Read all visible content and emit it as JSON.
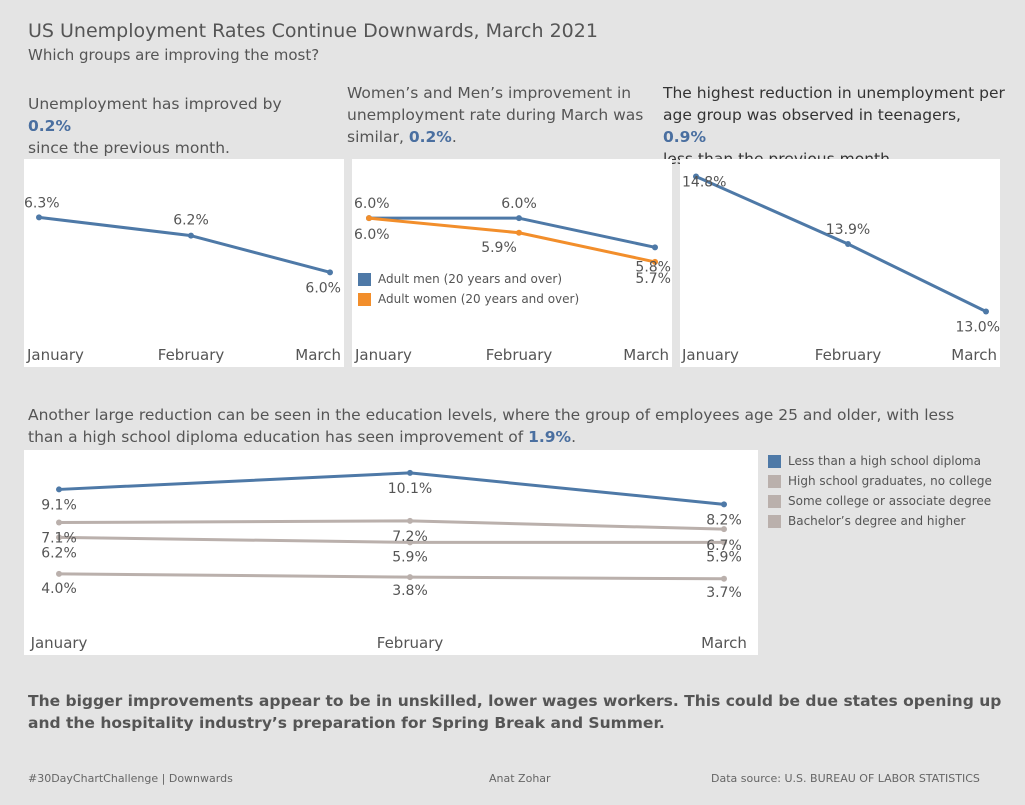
{
  "title": "US Unemployment Rates Continue Downwards, March 2021",
  "subtitle": "Which groups are improving the most?",
  "notes": {
    "overall_pre": "Unemployment has improved by ",
    "overall_val": "0.2%",
    "overall_post": "since the previous month.",
    "gender_pre": "Women’s and Men’s improvement in unemployment rate during March was similar, ",
    "gender_val": "0.2%",
    "gender_post": ".",
    "teen_pre": "The highest reduction in unemployment per age group was observed in teenagers, ",
    "teen_val": "0.9%",
    "teen_post": "less than the previous month.",
    "edu_pre": "Another large reduction can be seen  in the education levels, where the group of employees age 25 and older, with less than a high school diploma education has seen improvement of ",
    "edu_val": "1.9%",
    "edu_post": "."
  },
  "colors": {
    "blue": "#4e79a7",
    "orange": "#f28e2b",
    "gray": "#bab0ac",
    "accent_text": "#4a6fa0"
  },
  "chart_data": [
    {
      "type": "line",
      "id": "overall",
      "categories": [
        "January",
        "February",
        "March"
      ],
      "series": [
        {
          "values": [
            6.3,
            6.2,
            6.0
          ],
          "labels": [
            "6.3%",
            "6.2%",
            "6.0%"
          ],
          "color": "#4e79a7"
        }
      ]
    },
    {
      "type": "line",
      "id": "gender",
      "categories": [
        "January",
        "February",
        "March"
      ],
      "series": [
        {
          "name": "Adult men (20 years and over)",
          "values": [
            6.0,
            6.0,
            5.8
          ],
          "labels": [
            "6.0%",
            "6.0%",
            "5.8%"
          ],
          "color": "#4e79a7"
        },
        {
          "name": "Adult women (20 years and over)",
          "values": [
            6.0,
            5.9,
            5.7
          ],
          "labels": [
            "6.0%",
            "5.9%",
            "5.7%"
          ],
          "color": "#f28e2b"
        }
      ]
    },
    {
      "type": "line",
      "id": "teen",
      "categories": [
        "January",
        "February",
        "March"
      ],
      "series": [
        {
          "values": [
            14.8,
            13.9,
            13.0
          ],
          "labels": [
            "14.8%",
            "13.9%",
            "13.0%"
          ],
          "color": "#4e79a7"
        }
      ]
    },
    {
      "type": "line",
      "id": "education",
      "categories": [
        "January",
        "February",
        "March"
      ],
      "series": [
        {
          "name": "Less than a high school diploma",
          "values": [
            9.1,
            10.1,
            8.2
          ],
          "labels": [
            "9.1%",
            "10.1%",
            "8.2%"
          ],
          "color": "#4e79a7"
        },
        {
          "name": "High school graduates, no college",
          "values": [
            7.1,
            7.2,
            6.7
          ],
          "labels": [
            "7.1%",
            "7.2%",
            "6.7%"
          ],
          "color": "#bab0ac"
        },
        {
          "name": "Some college or associate degree",
          "values": [
            6.2,
            5.9,
            5.9
          ],
          "labels": [
            "6.2%",
            "5.9%",
            "5.9%"
          ],
          "color": "#bab0ac"
        },
        {
          "name": "Bachelor’s degree and higher",
          "values": [
            4.0,
            3.8,
            3.7
          ],
          "labels": [
            "4.0%",
            "3.8%",
            "3.7%"
          ],
          "color": "#bab0ac"
        }
      ]
    }
  ],
  "conclusion": "The bigger improvements appear to be in unskilled, lower wages workers. This could be due states opening up and the hospitality industry’s preparation for Spring Break and Summer.",
  "footer": {
    "left": "#30DayChartChallenge  |  Downwards",
    "center": "Anat Zohar",
    "right": "Data source: U.S. BUREAU OF LABOR STATISTICS"
  }
}
